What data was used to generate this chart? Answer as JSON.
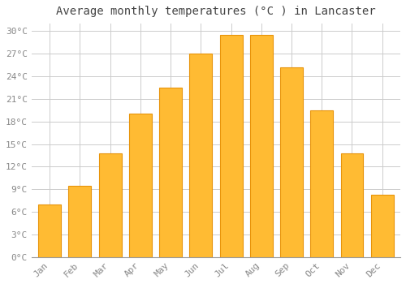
{
  "title": "Average monthly temperatures (°C ) in Lancaster",
  "months": [
    "Jan",
    "Feb",
    "Mar",
    "Apr",
    "May",
    "Jun",
    "Jul",
    "Aug",
    "Sep",
    "Oct",
    "Nov",
    "Dec"
  ],
  "values": [
    7.0,
    9.5,
    13.8,
    19.0,
    22.5,
    27.0,
    29.5,
    29.5,
    25.2,
    19.5,
    13.8,
    8.3
  ],
  "bar_color": "#FFBB33",
  "bar_edge_color": "#E8940A",
  "ylim": [
    0,
    31
  ],
  "yticks": [
    0,
    3,
    6,
    9,
    12,
    15,
    18,
    21,
    24,
    27,
    30
  ],
  "ylabel_suffix": "°C",
  "background_color": "#ffffff",
  "grid_color": "#cccccc",
  "title_fontsize": 10,
  "tick_fontsize": 8,
  "tick_color": "#888888",
  "bar_width": 0.75
}
